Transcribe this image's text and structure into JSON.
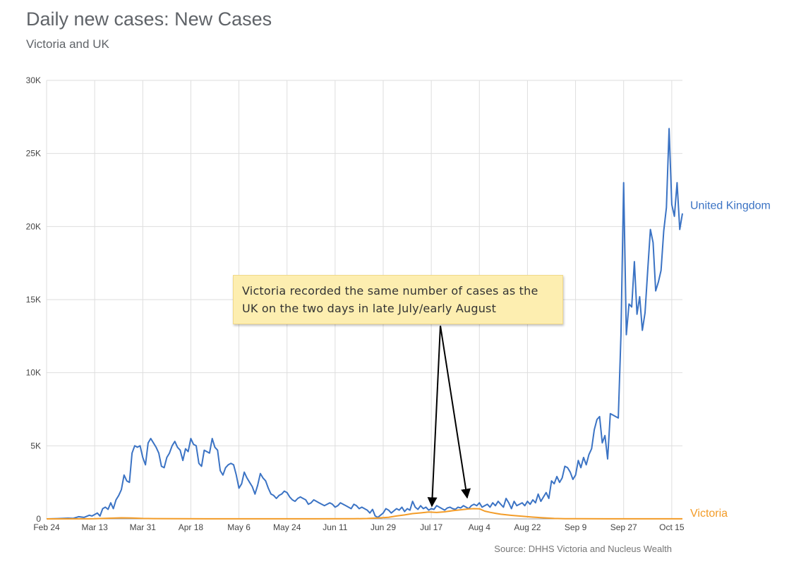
{
  "chart_data": {
    "type": "line",
    "title": "Daily new cases: New Cases",
    "subtitle": "Victoria and UK",
    "source": "Source: DHHS Victoria and Nucleus Wealth",
    "annotation": "Victoria recorded the same number of cases as the UK on the two days in late July/early August",
    "xlabel": "",
    "ylabel": "",
    "x_start": "Feb 24",
    "x_end_day": 238,
    "x_ticks": [
      {
        "day": 0,
        "label": "Feb 24"
      },
      {
        "day": 18,
        "label": "Mar 13"
      },
      {
        "day": 36,
        "label": "Mar 31"
      },
      {
        "day": 54,
        "label": "Apr 18"
      },
      {
        "day": 72,
        "label": "May 6"
      },
      {
        "day": 90,
        "label": "May 24"
      },
      {
        "day": 108,
        "label": "Jun 11"
      },
      {
        "day": 126,
        "label": "Jun 29"
      },
      {
        "day": 144,
        "label": "Jul 17"
      },
      {
        "day": 162,
        "label": "Aug 4"
      },
      {
        "day": 180,
        "label": "Aug 22"
      },
      {
        "day": 198,
        "label": "Sep 9"
      },
      {
        "day": 216,
        "label": "Sep 27"
      },
      {
        "day": 234,
        "label": "Oct 15"
      }
    ],
    "ylim": [
      0,
      30000
    ],
    "y_ticks": [
      {
        "value": 0,
        "label": "0"
      },
      {
        "value": 5000,
        "label": "5K"
      },
      {
        "value": 10000,
        "label": "10K"
      },
      {
        "value": 15000,
        "label": "15K"
      },
      {
        "value": 20000,
        "label": "20K"
      },
      {
        "value": 25000,
        "label": "25K"
      },
      {
        "value": 30000,
        "label": "30K"
      }
    ],
    "grid": true,
    "series": [
      {
        "name": "United Kingdom",
        "color": "#3b73c4",
        "points": [
          [
            0,
            0
          ],
          [
            4,
            20
          ],
          [
            8,
            50
          ],
          [
            10,
            40
          ],
          [
            12,
            150
          ],
          [
            14,
            100
          ],
          [
            16,
            250
          ],
          [
            17,
            200
          ],
          [
            19,
            400
          ],
          [
            20,
            200
          ],
          [
            21,
            700
          ],
          [
            22,
            800
          ],
          [
            23,
            650
          ],
          [
            24,
            1100
          ],
          [
            25,
            700
          ],
          [
            26,
            1300
          ],
          [
            27,
            1600
          ],
          [
            28,
            2000
          ],
          [
            29,
            3000
          ],
          [
            30,
            2600
          ],
          [
            31,
            2500
          ],
          [
            32,
            4500
          ],
          [
            33,
            5000
          ],
          [
            34,
            4900
          ],
          [
            35,
            5000
          ],
          [
            36,
            4200
          ],
          [
            37,
            3700
          ],
          [
            38,
            5200
          ],
          [
            39,
            5500
          ],
          [
            40,
            5200
          ],
          [
            41,
            4900
          ],
          [
            42,
            4500
          ],
          [
            43,
            3600
          ],
          [
            44,
            3500
          ],
          [
            45,
            4200
          ],
          [
            46,
            4500
          ],
          [
            47,
            5000
          ],
          [
            48,
            5300
          ],
          [
            49,
            4900
          ],
          [
            50,
            4700
          ],
          [
            51,
            4000
          ],
          [
            52,
            4800
          ],
          [
            53,
            4600
          ],
          [
            54,
            5500
          ],
          [
            55,
            5100
          ],
          [
            56,
            5000
          ],
          [
            57,
            3800
          ],
          [
            58,
            3600
          ],
          [
            59,
            4700
          ],
          [
            60,
            4600
          ],
          [
            61,
            4500
          ],
          [
            62,
            5500
          ],
          [
            63,
            4900
          ],
          [
            64,
            4700
          ],
          [
            65,
            3300
          ],
          [
            66,
            3000
          ],
          [
            67,
            3500
          ],
          [
            68,
            3700
          ],
          [
            69,
            3800
          ],
          [
            70,
            3700
          ],
          [
            71,
            3000
          ],
          [
            72,
            2100
          ],
          [
            73,
            2400
          ],
          [
            74,
            3200
          ],
          [
            75,
            2800
          ],
          [
            76,
            2500
          ],
          [
            77,
            2200
          ],
          [
            78,
            1700
          ],
          [
            79,
            2300
          ],
          [
            80,
            3100
          ],
          [
            81,
            2800
          ],
          [
            82,
            2600
          ],
          [
            83,
            2100
          ],
          [
            84,
            1700
          ],
          [
            85,
            1600
          ],
          [
            86,
            1400
          ],
          [
            87,
            1600
          ],
          [
            88,
            1700
          ],
          [
            89,
            1900
          ],
          [
            90,
            1800
          ],
          [
            91,
            1500
          ],
          [
            92,
            1300
          ],
          [
            93,
            1200
          ],
          [
            94,
            1400
          ],
          [
            95,
            1500
          ],
          [
            96,
            1400
          ],
          [
            97,
            1300
          ],
          [
            98,
            1000
          ],
          [
            99,
            1100
          ],
          [
            100,
            1300
          ],
          [
            101,
            1200
          ],
          [
            102,
            1100
          ],
          [
            103,
            1000
          ],
          [
            104,
            900
          ],
          [
            105,
            1000
          ],
          [
            106,
            1100
          ],
          [
            107,
            1000
          ],
          [
            108,
            800
          ],
          [
            109,
            900
          ],
          [
            110,
            1100
          ],
          [
            111,
            1000
          ],
          [
            112,
            900
          ],
          [
            113,
            800
          ],
          [
            114,
            700
          ],
          [
            115,
            1000
          ],
          [
            116,
            900
          ],
          [
            117,
            700
          ],
          [
            118,
            800
          ],
          [
            119,
            700
          ],
          [
            120,
            600
          ],
          [
            121,
            400
          ],
          [
            122,
            650
          ],
          [
            123,
            200
          ],
          [
            124,
            100
          ],
          [
            126,
            400
          ],
          [
            127,
            700
          ],
          [
            128,
            600
          ],
          [
            129,
            400
          ],
          [
            130,
            550
          ],
          [
            131,
            700
          ],
          [
            132,
            600
          ],
          [
            133,
            800
          ],
          [
            134,
            500
          ],
          [
            135,
            700
          ],
          [
            136,
            600
          ],
          [
            137,
            1200
          ],
          [
            138,
            800
          ],
          [
            139,
            650
          ],
          [
            140,
            900
          ],
          [
            141,
            700
          ],
          [
            142,
            800
          ],
          [
            143,
            600
          ],
          [
            144,
            700
          ],
          [
            145,
            650
          ],
          [
            146,
            900
          ],
          [
            147,
            800
          ],
          [
            148,
            700
          ],
          [
            149,
            600
          ],
          [
            150,
            750
          ],
          [
            151,
            800
          ],
          [
            152,
            700
          ],
          [
            153,
            650
          ],
          [
            154,
            800
          ],
          [
            155,
            750
          ],
          [
            156,
            900
          ],
          [
            157,
            800
          ],
          [
            158,
            700
          ],
          [
            159,
            900
          ],
          [
            160,
            1000
          ],
          [
            161,
            900
          ],
          [
            162,
            1100
          ],
          [
            163,
            800
          ],
          [
            164,
            900
          ],
          [
            165,
            1000
          ],
          [
            166,
            800
          ],
          [
            167,
            1100
          ],
          [
            168,
            900
          ],
          [
            169,
            1200
          ],
          [
            170,
            1000
          ],
          [
            171,
            800
          ],
          [
            172,
            1400
          ],
          [
            173,
            1100
          ],
          [
            174,
            700
          ],
          [
            175,
            1200
          ],
          [
            176,
            900
          ],
          [
            177,
            1000
          ],
          [
            178,
            1100
          ],
          [
            179,
            900
          ],
          [
            180,
            1200
          ],
          [
            181,
            1000
          ],
          [
            182,
            1300
          ],
          [
            183,
            1100
          ],
          [
            184,
            1700
          ],
          [
            185,
            1200
          ],
          [
            186,
            1500
          ],
          [
            187,
            1800
          ],
          [
            188,
            1400
          ],
          [
            189,
            2600
          ],
          [
            190,
            2400
          ],
          [
            191,
            2900
          ],
          [
            192,
            2500
          ],
          [
            193,
            2800
          ],
          [
            194,
            3600
          ],
          [
            195,
            3500
          ],
          [
            196,
            3200
          ],
          [
            197,
            2700
          ],
          [
            198,
            3000
          ],
          [
            199,
            4000
          ],
          [
            200,
            3500
          ],
          [
            201,
            4200
          ],
          [
            202,
            3700
          ],
          [
            203,
            4400
          ],
          [
            204,
            4800
          ],
          [
            205,
            6100
          ],
          [
            206,
            6800
          ],
          [
            207,
            7000
          ],
          [
            208,
            5200
          ],
          [
            209,
            5700
          ],
          [
            210,
            4100
          ],
          [
            211,
            7200
          ],
          [
            212,
            7100
          ],
          [
            213,
            7000
          ],
          [
            214,
            6900
          ],
          [
            215,
            12600
          ],
          [
            216,
            23000
          ],
          [
            217,
            12600
          ],
          [
            218,
            14700
          ],
          [
            219,
            14500
          ],
          [
            220,
            17600
          ],
          [
            221,
            14000
          ],
          [
            222,
            15200
          ],
          [
            223,
            12900
          ],
          [
            224,
            14100
          ],
          [
            225,
            17000
          ],
          [
            226,
            19800
          ],
          [
            227,
            18900
          ],
          [
            228,
            15600
          ],
          [
            229,
            16200
          ],
          [
            230,
            17000
          ],
          [
            231,
            19700
          ],
          [
            232,
            21300
          ],
          [
            233,
            26700
          ],
          [
            234,
            21500
          ],
          [
            235,
            20700
          ],
          [
            236,
            23000
          ],
          [
            237,
            19800
          ],
          [
            238,
            20900
          ]
        ]
      },
      {
        "name": "Victoria",
        "color": "#f39c28",
        "points": [
          [
            0,
            0
          ],
          [
            18,
            10
          ],
          [
            24,
            50
          ],
          [
            28,
            70
          ],
          [
            32,
            60
          ],
          [
            36,
            30
          ],
          [
            40,
            20
          ],
          [
            50,
            10
          ],
          [
            60,
            5
          ],
          [
            80,
            3
          ],
          [
            100,
            5
          ],
          [
            115,
            10
          ],
          [
            120,
            25
          ],
          [
            125,
            70
          ],
          [
            128,
            110
          ],
          [
            131,
            200
          ],
          [
            134,
            270
          ],
          [
            137,
            360
          ],
          [
            140,
            410
          ],
          [
            143,
            470
          ],
          [
            146,
            440
          ],
          [
            149,
            480
          ],
          [
            152,
            560
          ],
          [
            155,
            620
          ],
          [
            158,
            680
          ],
          [
            160,
            700
          ],
          [
            162,
            690
          ],
          [
            164,
            530
          ],
          [
            166,
            450
          ],
          [
            168,
            380
          ],
          [
            170,
            320
          ],
          [
            174,
            240
          ],
          [
            178,
            180
          ],
          [
            182,
            120
          ],
          [
            186,
            70
          ],
          [
            190,
            30
          ],
          [
            194,
            15
          ],
          [
            200,
            8
          ],
          [
            210,
            5
          ],
          [
            238,
            3
          ]
        ]
      }
    ]
  }
}
